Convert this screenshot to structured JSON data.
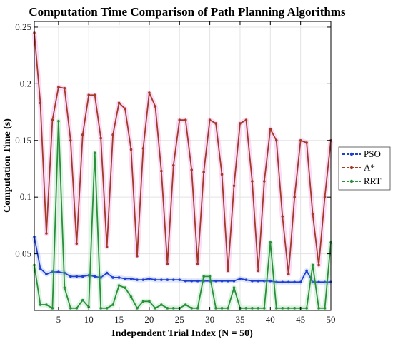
{
  "chart_data": {
    "type": "line",
    "title": "Computation Time Comparison of Path Planning Algorithms",
    "xlabel": "Independent Trial Index (N = 50)",
    "ylabel": "Computation Time (s)",
    "xlim": [
      1,
      50
    ],
    "ylim": [
      0,
      0.255
    ],
    "xticks": [
      5,
      10,
      15,
      20,
      25,
      30,
      35,
      40,
      45,
      50
    ],
    "yticks": [
      0.05,
      0.1,
      0.15,
      0.2,
      0.25
    ],
    "ytick_labels": [
      "0.05",
      "0.1",
      "0.15",
      "0.2",
      "0.25"
    ],
    "grid": true,
    "legend_position": "outside-right",
    "x": [
      1,
      2,
      3,
      4,
      5,
      6,
      7,
      8,
      9,
      10,
      11,
      12,
      13,
      14,
      15,
      16,
      17,
      18,
      19,
      20,
      21,
      22,
      23,
      24,
      25,
      26,
      27,
      28,
      29,
      30,
      31,
      32,
      33,
      34,
      35,
      36,
      37,
      38,
      39,
      40,
      41,
      42,
      43,
      44,
      45,
      46,
      47,
      48,
      49,
      50
    ],
    "series": [
      {
        "name": "PSO",
        "color": "#1f3fcf",
        "values": [
          0.065,
          0.037,
          0.032,
          0.034,
          0.034,
          0.033,
          0.03,
          0.03,
          0.03,
          0.031,
          0.03,
          0.029,
          0.033,
          0.029,
          0.029,
          0.028,
          0.028,
          0.027,
          0.027,
          0.028,
          0.027,
          0.027,
          0.027,
          0.027,
          0.027,
          0.026,
          0.026,
          0.026,
          0.026,
          0.026,
          0.026,
          0.026,
          0.026,
          0.026,
          0.028,
          0.027,
          0.026,
          0.026,
          0.026,
          0.026,
          0.025,
          0.025,
          0.025,
          0.025,
          0.025,
          0.035,
          0.025,
          0.025,
          0.025,
          0.025
        ]
      },
      {
        "name": "A*",
        "color": "#a23a25",
        "values": [
          0.245,
          0.183,
          0.068,
          0.168,
          0.197,
          0.196,
          0.15,
          0.059,
          0.155,
          0.19,
          0.19,
          0.152,
          0.056,
          0.155,
          0.183,
          0.178,
          0.142,
          0.048,
          0.143,
          0.192,
          0.18,
          0.123,
          0.041,
          0.128,
          0.168,
          0.168,
          0.124,
          0.041,
          0.122,
          0.168,
          0.165,
          0.12,
          0.035,
          0.11,
          0.165,
          0.168,
          0.114,
          0.035,
          0.114,
          0.16,
          0.15,
          0.083,
          0.032,
          0.1,
          0.15,
          0.148,
          0.085,
          0.04,
          0.1,
          0.15
        ]
      },
      {
        "name": "RRT",
        "color": "#2a8f3a",
        "values": [
          0.04,
          0.005,
          0.005,
          0.002,
          0.167,
          0.02,
          0.002,
          0.002,
          0.009,
          0.003,
          0.139,
          0.002,
          0.002,
          0.005,
          0.022,
          0.02,
          0.012,
          0.002,
          0.008,
          0.008,
          0.002,
          0.005,
          0.002,
          0.002,
          0.002,
          0.005,
          0.002,
          0.002,
          0.03,
          0.03,
          0.002,
          0.002,
          0.002,
          0.02,
          0.002,
          0.002,
          0.002,
          0.002,
          0.002,
          0.06,
          0.002,
          0.002,
          0.002,
          0.002,
          0.002,
          0.002,
          0.04,
          0.002,
          0.002,
          0.06
        ]
      }
    ]
  }
}
